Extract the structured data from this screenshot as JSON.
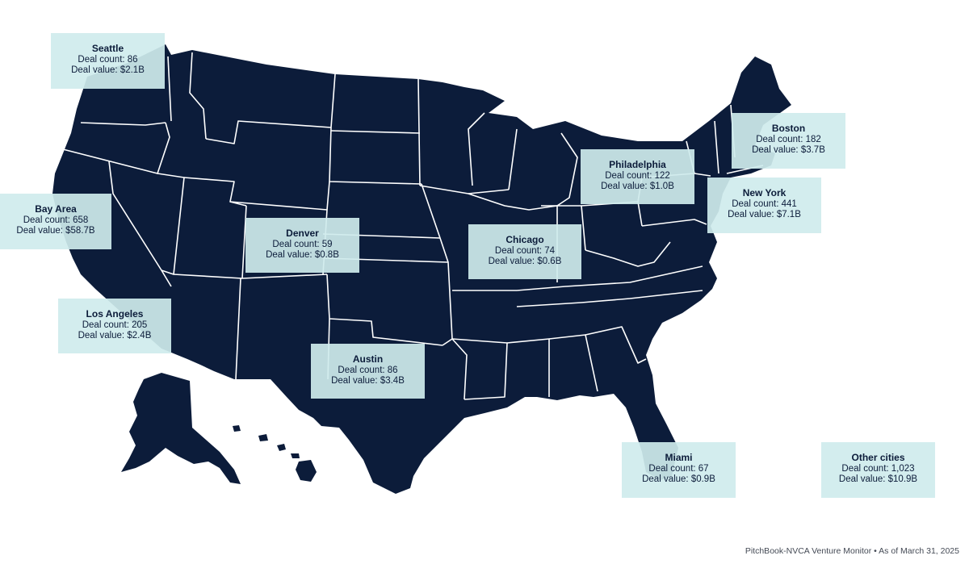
{
  "source": "PitchBook-NVCA Venture Monitor  •  As of March 31, 2025",
  "colors": {
    "land": "#0c1c3a",
    "label_bg": "#cfebed",
    "border": "#ffffff"
  },
  "cities": [
    {
      "id": "seattle",
      "name": "Seattle",
      "count_text": "Deal count: 86",
      "value_text": "Deal value: $2.1B"
    },
    {
      "id": "bay-area",
      "name": "Bay Area",
      "count_text": "Deal count: 658",
      "value_text": "Deal value: $58.7B"
    },
    {
      "id": "los-angeles",
      "name": "Los Angeles",
      "count_text": "Deal count: 205",
      "value_text": "Deal value: $2.4B"
    },
    {
      "id": "denver",
      "name": "Denver",
      "count_text": "Deal count: 59",
      "value_text": "Deal value: $0.8B"
    },
    {
      "id": "austin",
      "name": "Austin",
      "count_text": "Deal count: 86",
      "value_text": "Deal value: $3.4B"
    },
    {
      "id": "chicago",
      "name": "Chicago",
      "count_text": "Deal count: 74",
      "value_text": "Deal value: $0.6B"
    },
    {
      "id": "philadelphia",
      "name": "Philadelphia",
      "count_text": "Deal count: 122",
      "value_text": "Deal value: $1.0B"
    },
    {
      "id": "boston",
      "name": "Boston",
      "count_text": "Deal count: 182",
      "value_text": "Deal value: $3.7B"
    },
    {
      "id": "new-york",
      "name": "New York",
      "count_text": "Deal count: 441",
      "value_text": "Deal value: $7.1B"
    },
    {
      "id": "miami",
      "name": "Miami",
      "count_text": "Deal count: 67",
      "value_text": "Deal value: $0.9B"
    },
    {
      "id": "other-cities",
      "name": "Other cities",
      "count_text": "Deal count: 1,023",
      "value_text": "Deal value: $10.9B"
    }
  ]
}
